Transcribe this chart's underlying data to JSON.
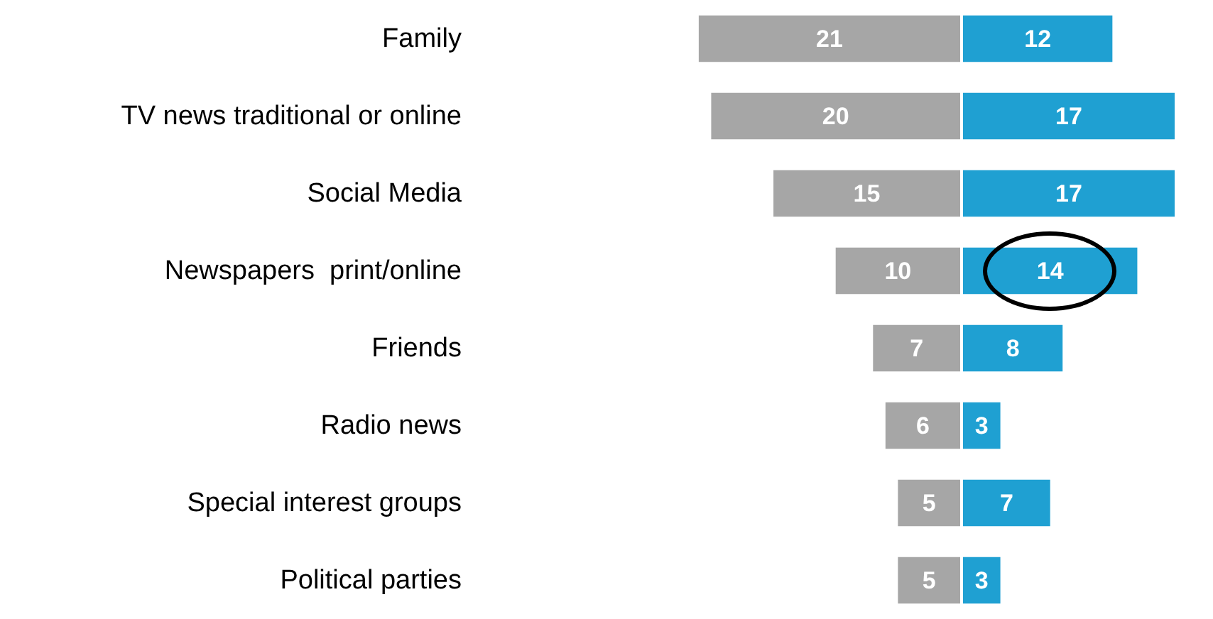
{
  "chart_data": [
    {
      "type": "bar",
      "orientation": "horizontal",
      "data_labels": true,
      "xlim": [
        21,
        0
      ],
      "categories": [
        "Family",
        "TV news traditional or online",
        "Social Media",
        "Newspapers  print/online",
        "Friends",
        "Radio news",
        "Special interest groups",
        "Political parties"
      ],
      "series": [
        {
          "color": "#a6a6a6",
          "values": [
            21,
            20,
            15,
            10,
            7,
            6,
            5,
            5
          ]
        }
      ]
    },
    {
      "type": "bar",
      "orientation": "horizontal",
      "data_labels": true,
      "xlim": [
        0,
        17
      ],
      "tick_labels": false,
      "categories": [
        null,
        null,
        null,
        null,
        null,
        null,
        null,
        null
      ],
      "series": [
        {
          "color": "#1fa0d2",
          "values": [
            12,
            17,
            17,
            14,
            8,
            3,
            7,
            3
          ]
        }
      ]
    }
  ]
}
